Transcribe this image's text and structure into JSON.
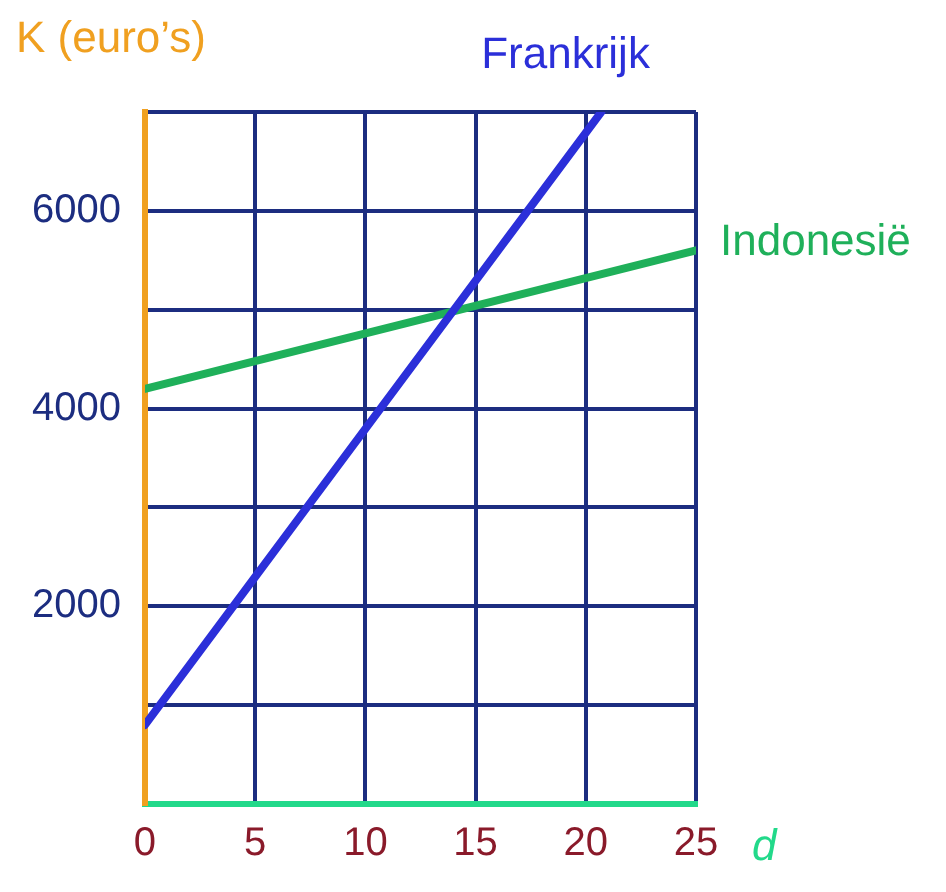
{
  "chart_data": {
    "type": "line",
    "xlabel": "d",
    "ylabel": "K (euro’s)",
    "xlim": [
      0,
      25
    ],
    "xticks": [
      0,
      5,
      10,
      15,
      20,
      25
    ],
    "ylim": [
      0,
      7000
    ],
    "yticks": [
      {
        "value": 0,
        "label": null
      },
      {
        "value": 1000,
        "label": null
      },
      2000,
      {
        "value": 3000,
        "label": null
      },
      4000,
      {
        "value": 5000,
        "label": null
      },
      6000,
      {
        "value": 7000,
        "label": null
      }
    ],
    "grid": true,
    "legend": false,
    "marker": "none",
    "line_style": "solid",
    "series": [
      {
        "name": "Frankrijk",
        "color": "#2b2fd9",
        "x": [
          0,
          20.7
        ],
        "values": [
          800,
          7000
        ]
      },
      {
        "name": "Indonesië",
        "color": "#1fb05a",
        "x": [
          0,
          25
        ],
        "values": [
          4200,
          5600
        ]
      }
    ]
  }
}
